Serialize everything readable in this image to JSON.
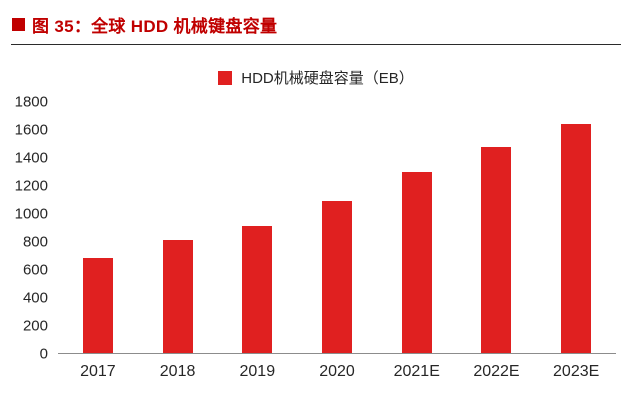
{
  "header": {
    "title": "图 35：全球 HDD 机械键盘容量"
  },
  "colors": {
    "title_red": "#c00000",
    "bar_red": "#e02020",
    "axis_text": "#262626",
    "baseline": "#8c8c8c"
  },
  "chart_data": {
    "type": "bar",
    "title": "图 35：全球 HDD 机械键盘容量",
    "legend": "HDD机械硬盘容量（EB）",
    "legend_position": "top",
    "categories": [
      "2017",
      "2018",
      "2019",
      "2020",
      "2021E",
      "2022E",
      "2023E"
    ],
    "values": [
      680,
      810,
      910,
      1090,
      1300,
      1480,
      1640
    ],
    "xlabel": "",
    "ylabel": "",
    "ylim": [
      0,
      1800
    ],
    "yticks": [
      0,
      200,
      400,
      600,
      800,
      1000,
      1200,
      1400,
      1600,
      1800
    ],
    "grid": false,
    "bar_color": "#e02020"
  }
}
